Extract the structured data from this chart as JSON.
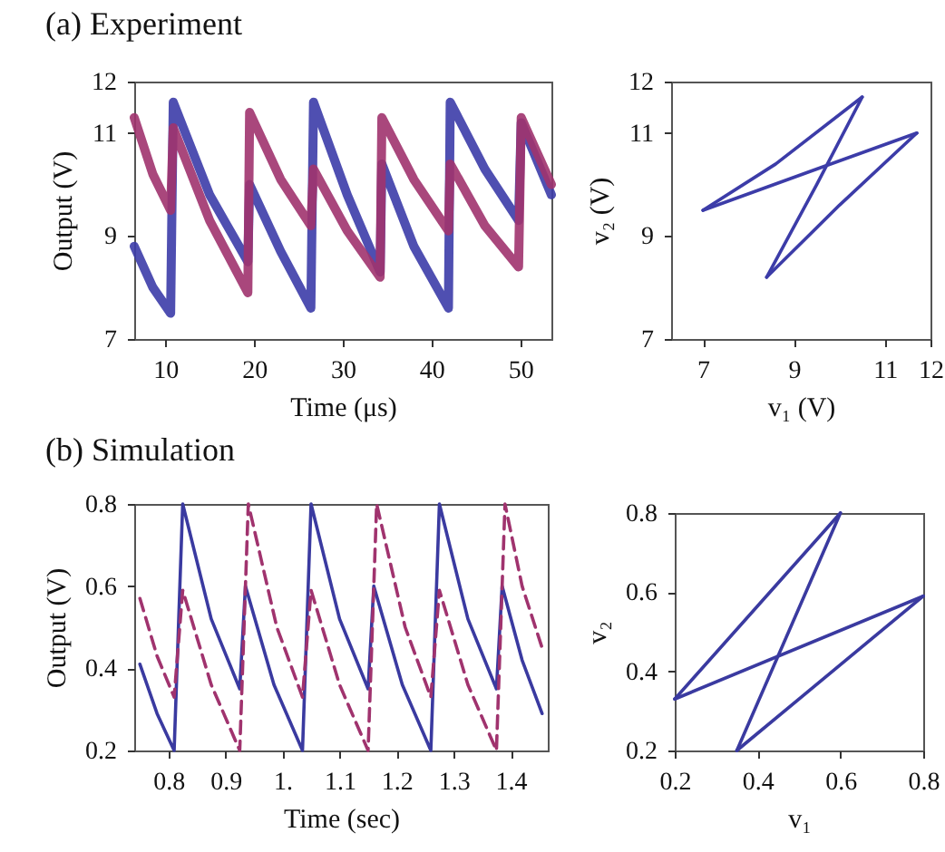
{
  "chart_data": [
    {
      "type": "line",
      "title": "(a) Experiment",
      "xlabel": "Time (μs)",
      "ylabel": "Output (V)",
      "xlim": [
        6.5,
        53.5
      ],
      "ylim": [
        7,
        12
      ],
      "xticks": [
        10,
        20,
        30,
        40,
        50
      ],
      "yticks": [
        7,
        9,
        11,
        12
      ],
      "grid": false,
      "marker": "none",
      "series": [
        {
          "color": "#3c3ca8",
          "line_style": "solid",
          "x": [
            6.5,
            8.6,
            10.6,
            10.9,
            15,
            19.3,
            19.5,
            23,
            26.4,
            26.7,
            30.5,
            34.2,
            34.4,
            38,
            41.9,
            42.1,
            46,
            49.8,
            50.1,
            53.5
          ],
          "values": [
            8.8,
            8.0,
            7.5,
            11.6,
            9.8,
            8.5,
            10.0,
            8.7,
            7.6,
            11.6,
            9.8,
            8.3,
            10.4,
            8.8,
            7.6,
            11.6,
            10.3,
            9.3,
            11.2,
            9.8
          ]
        },
        {
          "color": "#a0336e",
          "line_style": "solid",
          "x": [
            6.5,
            8.6,
            10.6,
            10.9,
            15,
            19.3,
            19.5,
            23,
            26.4,
            26.7,
            30.5,
            34.2,
            34.4,
            38,
            41.9,
            42.1,
            46,
            49.8,
            50.1,
            53.5
          ],
          "values": [
            11.3,
            10.2,
            9.5,
            11.1,
            9.3,
            7.9,
            11.4,
            10.1,
            9.2,
            10.3,
            9.1,
            8.2,
            11.3,
            10.1,
            9.1,
            10.4,
            9.2,
            8.4,
            11.3,
            10.0
          ]
        }
      ]
    },
    {
      "type": "line",
      "xlabel": "v₁ (V)",
      "ylabel": "v₂ (V)",
      "xlim": [
        6.3,
        12
      ],
      "ylim": [
        7,
        12
      ],
      "xticks": [
        7,
        9,
        11,
        12
      ],
      "yticks": [
        7,
        9,
        11,
        12
      ],
      "grid": false,
      "marker": "none",
      "series": [
        {
          "color": "#3c3ca8",
          "line_style": "solid",
          "x": [
            8.4,
            10.0,
            11.7
          ],
          "values": [
            8.2,
            9.6,
            11.0
          ]
        },
        {
          "color": "#3c3ca8",
          "line_style": "solid",
          "x": [
            7.0,
            9.5,
            11.7
          ],
          "values": [
            9.5,
            10.3,
            11.0
          ]
        },
        {
          "color": "#3c3ca8",
          "line_style": "solid",
          "x": [
            7.0,
            8.6,
            10.5
          ],
          "values": [
            9.5,
            10.4,
            11.7
          ]
        },
        {
          "color": "#3c3ca8",
          "line_style": "solid",
          "x": [
            8.4,
            9.5,
            10.5
          ],
          "values": [
            8.2,
            10.0,
            11.7
          ]
        }
      ]
    },
    {
      "type": "line",
      "title": "(b) Simulation",
      "xlabel": "Time (sec)",
      "ylabel": "Output (V)",
      "xlim": [
        0.74,
        1.465
      ],
      "ylim": [
        0.2,
        0.8
      ],
      "xticks": [
        0.8,
        0.9,
        {
          "value": 1,
          "label": "1."
        },
        1.1,
        1.2,
        1.3,
        1.4
      ],
      "yticks": [
        0.2,
        0.4,
        0.6,
        0.8
      ],
      "grid": false,
      "marker": "none",
      "series": [
        {
          "color": "#3a3aa0",
          "line_style": "solid",
          "x": [
            0.75,
            0.78,
            0.81,
            0.825,
            0.875,
            0.925,
            0.935,
            0.985,
            1.035,
            1.05,
            1.1,
            1.15,
            1.16,
            1.21,
            1.26,
            1.275,
            1.325,
            1.375,
            1.385,
            1.42,
            1.455
          ],
          "values": [
            0.41,
            0.29,
            0.2,
            0.8,
            0.52,
            0.35,
            0.6,
            0.36,
            0.2,
            0.8,
            0.52,
            0.35,
            0.6,
            0.36,
            0.2,
            0.8,
            0.52,
            0.35,
            0.6,
            0.42,
            0.29
          ]
        },
        {
          "color": "#a0336e",
          "line_style": "dashed",
          "x": [
            0.75,
            0.78,
            0.81,
            0.825,
            0.875,
            0.925,
            0.94,
            0.99,
            1.035,
            1.05,
            1.1,
            1.15,
            1.165,
            1.215,
            1.26,
            1.275,
            1.325,
            1.375,
            1.39,
            1.42,
            1.455
          ],
          "values": [
            0.57,
            0.43,
            0.33,
            0.59,
            0.36,
            0.2,
            0.8,
            0.5,
            0.33,
            0.59,
            0.36,
            0.2,
            0.8,
            0.5,
            0.33,
            0.59,
            0.36,
            0.2,
            0.8,
            0.6,
            0.45
          ]
        }
      ]
    },
    {
      "type": "line",
      "xlabel": "v₁",
      "ylabel": "v₂",
      "xlim": [
        0.2,
        0.8
      ],
      "ylim": [
        0.2,
        0.8
      ],
      "xticks": [
        0.2,
        0.4,
        0.6,
        0.8
      ],
      "yticks": [
        0.2,
        0.4,
        0.6,
        0.8
      ],
      "grid": false,
      "marker": "none",
      "series": [
        {
          "color": "#3a3aa0",
          "line_style": "solid",
          "x": [
            0.2,
            0.6
          ],
          "values": [
            0.33,
            0.8
          ]
        },
        {
          "color": "#3a3aa0",
          "line_style": "solid",
          "x": [
            0.35,
            0.6
          ],
          "values": [
            0.2,
            0.8
          ]
        },
        {
          "color": "#3a3aa0",
          "line_style": "solid",
          "x": [
            0.35,
            0.8
          ],
          "values": [
            0.2,
            0.59
          ]
        },
        {
          "color": "#3a3aa0",
          "line_style": "solid",
          "x": [
            0.2,
            0.8
          ],
          "values": [
            0.33,
            0.59
          ]
        }
      ]
    }
  ]
}
